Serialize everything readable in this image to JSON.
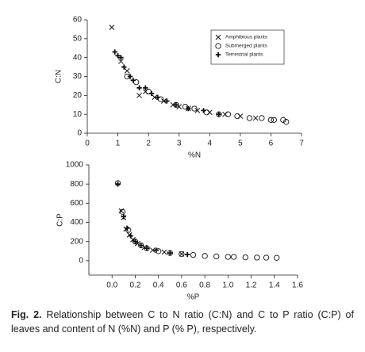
{
  "chart_data": [
    {
      "type": "scatter",
      "xlabel": "%N",
      "ylabel": "C:N",
      "xlim": [
        0,
        7
      ],
      "xticks": [
        0,
        1,
        2,
        3,
        4,
        5,
        6,
        7
      ],
      "ylim": [
        0,
        60
      ],
      "yticks": [
        0,
        10,
        20,
        30,
        40,
        50,
        60
      ],
      "legend": "upper right",
      "series": [
        {
          "name": "Amphibious plants",
          "marker": "x",
          "color": "#111",
          "x": [
            0.8,
            1.1,
            1.3,
            1.7,
            1.9,
            2.2,
            2.5,
            2.8,
            3.0,
            3.3,
            3.6,
            4.0,
            4.5,
            5.0,
            5.5
          ],
          "values": [
            56,
            38,
            33,
            20,
            22,
            19,
            17,
            15,
            14,
            13,
            12,
            11,
            10,
            9,
            8
          ]
        },
        {
          "name": "Submerged plants",
          "marker": "circle",
          "color": "#111",
          "x": [
            1.3,
            1.6,
            2.0,
            2.4,
            2.9,
            3.2,
            3.5,
            3.9,
            4.3,
            4.6,
            4.9,
            5.3,
            5.7,
            6.0,
            6.1,
            6.4,
            6.5
          ],
          "values": [
            30,
            27,
            22,
            18,
            15,
            14,
            13,
            11,
            10,
            10,
            9,
            8,
            8,
            7,
            7,
            7,
            6
          ]
        },
        {
          "name": "Terrestrial plants",
          "marker": "plus",
          "color": "#111",
          "x": [
            0.9,
            1.0,
            1.1,
            1.2,
            1.4,
            1.5,
            1.7,
            1.9,
            2.1,
            2.3,
            2.6,
            2.9,
            3.3,
            3.8,
            4.3
          ],
          "values": [
            43,
            41,
            40,
            35,
            30,
            28,
            24,
            24,
            21,
            19,
            17,
            15,
            13,
            12,
            10
          ]
        }
      ]
    },
    {
      "type": "scatter",
      "xlabel": "%P",
      "ylabel": "C:P",
      "xlim": [
        -0.2,
        1.6
      ],
      "xticks": [
        {
          "value": 0,
          "label": "0.0"
        },
        {
          "value": 0.2,
          "label": "0.2"
        },
        {
          "value": 0.4,
          "label": "0.4"
        },
        {
          "value": 0.6,
          "label": "0.6"
        },
        {
          "value": 0.8,
          "label": "0.8"
        },
        {
          "value": 1,
          "label": "1.0"
        },
        {
          "value": 1.2,
          "label": "1.2"
        },
        {
          "value": 1.4,
          "label": "1.4"
        },
        {
          "value": 1.6,
          "label": "1.6"
        }
      ],
      "ylim": [
        -150,
        1000
      ],
      "yticks": [
        0,
        200,
        400,
        600,
        800,
        1000
      ],
      "series": [
        {
          "marker": "x",
          "color": "#111",
          "x": [
            0.08,
            0.1,
            0.12,
            0.15,
            0.18,
            0.22,
            0.28,
            0.35,
            0.45,
            0.6
          ],
          "values": [
            520,
            450,
            330,
            270,
            220,
            180,
            140,
            110,
            90,
            70
          ]
        },
        {
          "marker": "circle",
          "color": "#111",
          "x": [
            0.05,
            0.09,
            0.14,
            0.2,
            0.25,
            0.3,
            0.4,
            0.5,
            0.6,
            0.7,
            0.8,
            0.9,
            1.0,
            1.05,
            1.15,
            1.25,
            1.33,
            1.42
          ],
          "values": [
            810,
            510,
            320,
            200,
            160,
            130,
            100,
            80,
            70,
            60,
            50,
            45,
            40,
            40,
            35,
            33,
            32,
            30
          ]
        },
        {
          "marker": "plus",
          "color": "#111",
          "x": [
            0.05,
            0.1,
            0.13,
            0.16,
            0.2,
            0.25,
            0.3,
            0.38,
            0.5,
            0.65
          ],
          "values": [
            800,
            460,
            340,
            260,
            200,
            160,
            130,
            110,
            80,
            65
          ]
        }
      ]
    }
  ],
  "caption": {
    "label": "Fig. 2.",
    "text": "Relationship between C to N ratio (C:N) and C to P ratio (C:P) of leaves and content of N (%N) and P (% P), respectively."
  }
}
